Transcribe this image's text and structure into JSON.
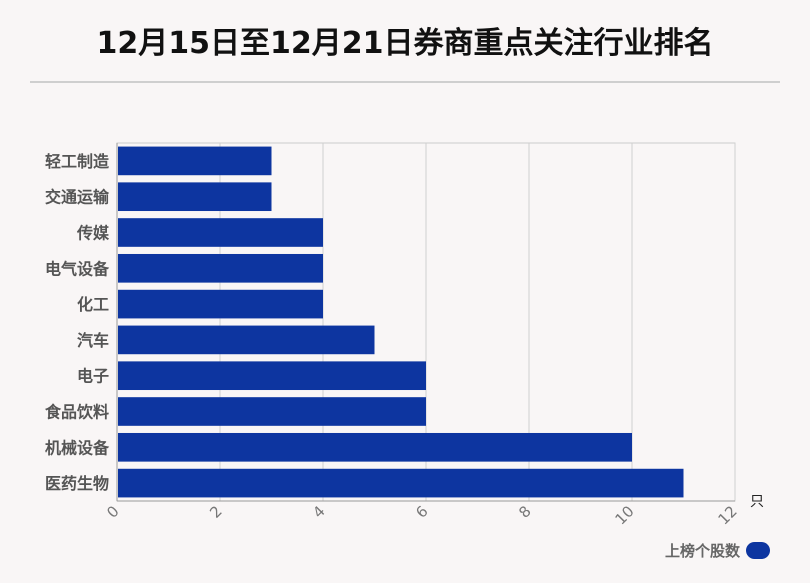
{
  "title": "12月15日至12月21日券商重点关注行业排名",
  "chart_data": {
    "type": "bar",
    "orientation": "horizontal",
    "categories": [
      "轻工制造",
      "交通运输",
      "传媒",
      "电气设备",
      "化工",
      "汽车",
      "电子",
      "食品饮料",
      "机械设备",
      "医药生物"
    ],
    "series": [
      {
        "name": "上榜个股数",
        "values": [
          3,
          3,
          4,
          4,
          4,
          5,
          6,
          6,
          10,
          11
        ]
      }
    ],
    "xlim": [
      0,
      12
    ],
    "xticks": [
      "0",
      "2",
      "4",
      "6",
      "8",
      "10",
      "12"
    ],
    "unit_label": "只",
    "grid": true,
    "legend_position": "bottom-right",
    "bar_color": "#0d35a0"
  }
}
